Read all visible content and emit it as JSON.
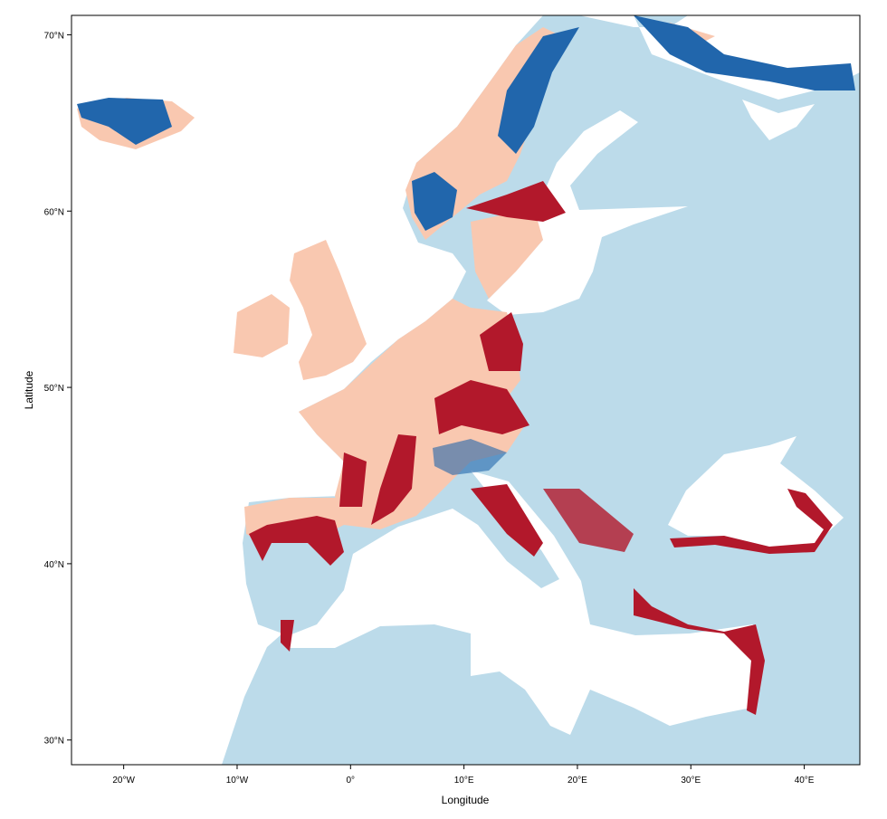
{
  "map": {
    "x_label": "Longitude",
    "y_label": "Latitude",
    "xlim": [
      -24.6,
      44.9
    ],
    "ylim": [
      28.6,
      71.1
    ],
    "xticks": [
      {
        "value": -20,
        "label": "20°W"
      },
      {
        "value": -10,
        "label": "10°W"
      },
      {
        "value": 0,
        "label": "0°"
      },
      {
        "value": 10,
        "label": "10°E"
      },
      {
        "value": 20,
        "label": "20°E"
      },
      {
        "value": 30,
        "label": "30°E"
      },
      {
        "value": 40,
        "label": "40°E"
      }
    ],
    "yticks": [
      {
        "value": 30,
        "label": "30°N"
      },
      {
        "value": 40,
        "label": "40°N"
      },
      {
        "value": 50,
        "label": "50°N"
      },
      {
        "value": 60,
        "label": "60°N"
      },
      {
        "value": 70,
        "label": "70°N"
      }
    ]
  }
}
